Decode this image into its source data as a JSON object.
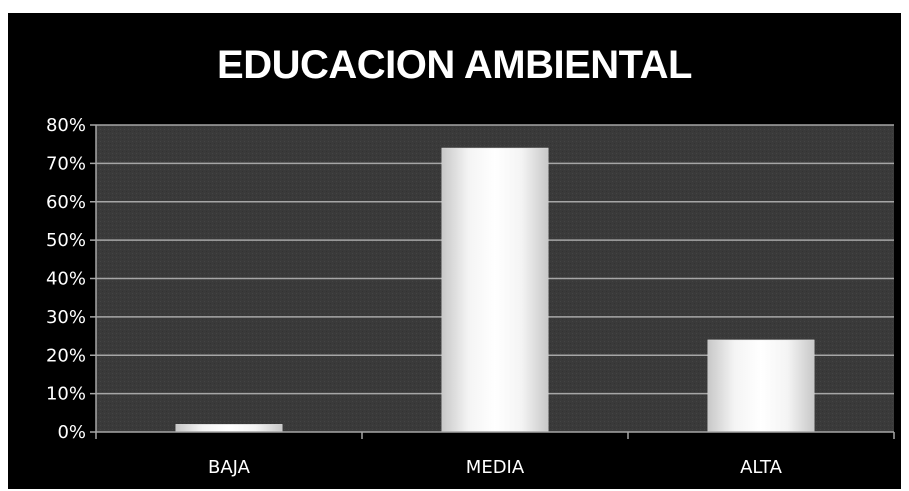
{
  "chart_data": {
    "type": "bar",
    "title": "EDUCACION AMBIENTAL",
    "xlabel": "",
    "ylabel": "",
    "categories": [
      "BAJA",
      "MEDIA",
      "ALTA"
    ],
    "values": [
      0.02,
      0.74,
      0.24
    ],
    "ylim": [
      0,
      0.8
    ],
    "y_ticks": [
      "0%",
      "10%",
      "20%",
      "30%",
      "40%",
      "50%",
      "60%",
      "70%",
      "80%"
    ],
    "grid": true,
    "legend": "none",
    "colors": {
      "background": "#000000",
      "plot_area": "#3a3a3a",
      "gridline": "#a6a6a6",
      "bar": "#ffffff",
      "text": "#ffffff"
    }
  }
}
